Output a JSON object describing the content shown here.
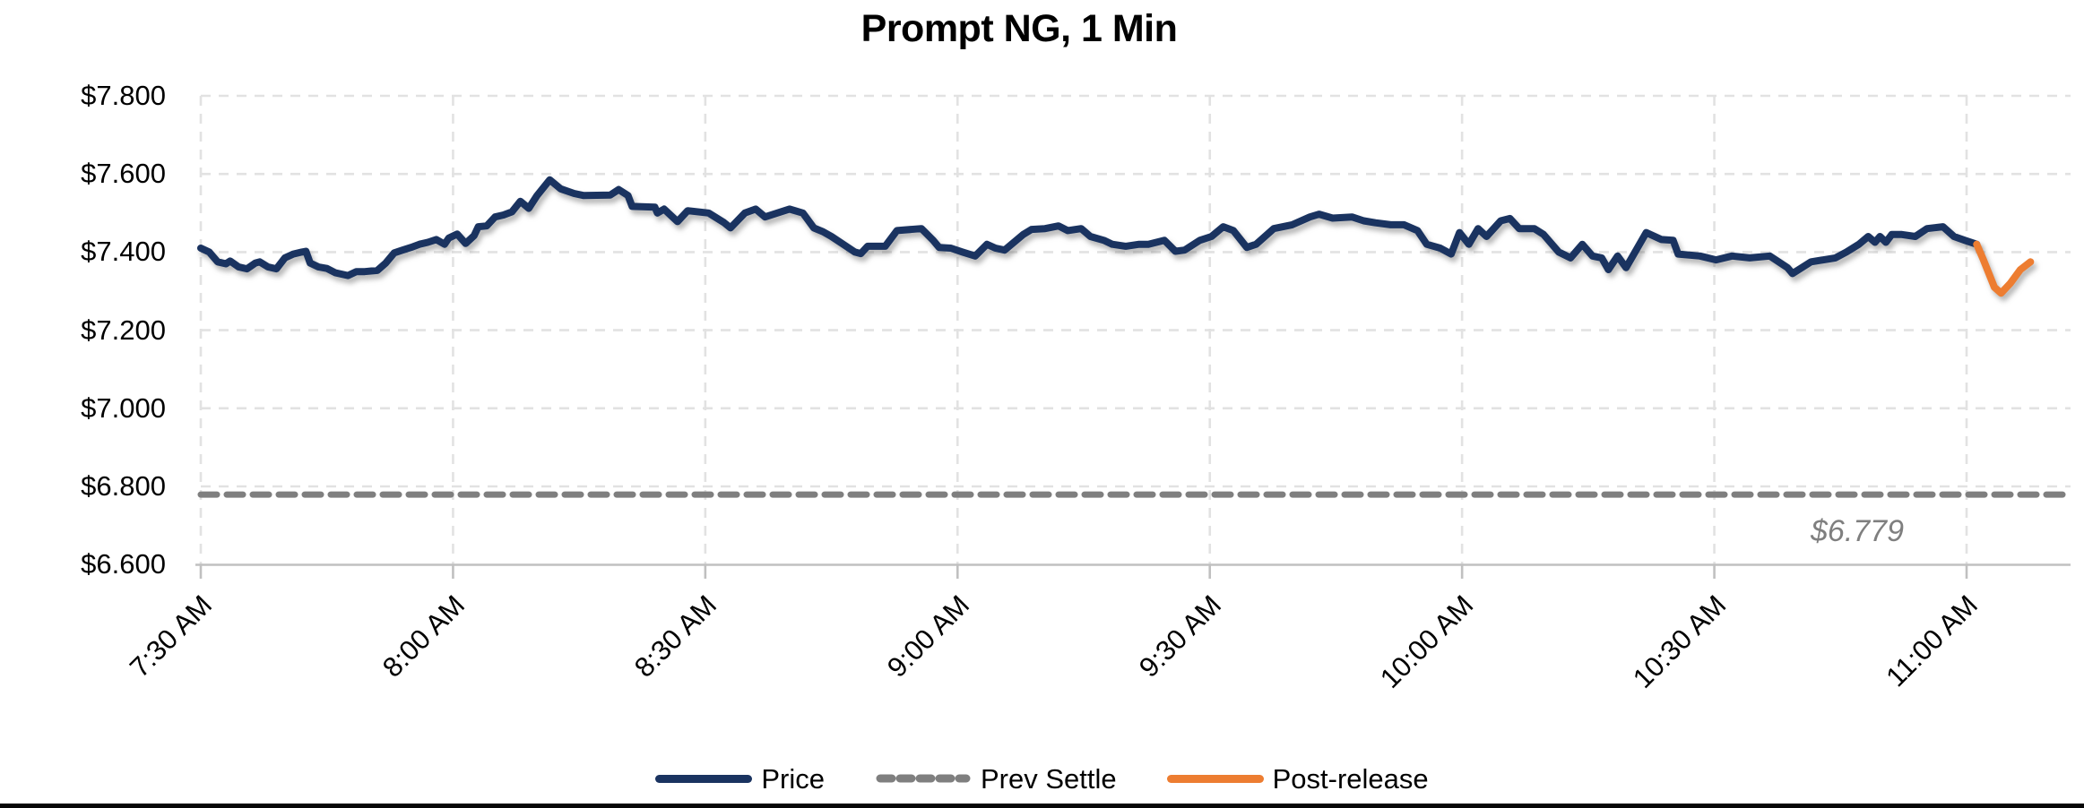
{
  "chart_data": {
    "type": "line",
    "title": "Prompt NG, 1 Min",
    "xlabel": "",
    "ylabel": "",
    "x_unit": "minutes after 7:30 AM",
    "x_tick_labels": [
      "7:30 AM",
      "8:00 AM",
      "8:30 AM",
      "9:00 AM",
      "9:30 AM",
      "10:00 AM",
      "10:30 AM",
      "11:00 AM"
    ],
    "x_tick_minutes": [
      0,
      30,
      60,
      90,
      120,
      150,
      180,
      210
    ],
    "y_tick_labels": [
      "$7.800",
      "$7.600",
      "$7.400",
      "$7.200",
      "$7.000",
      "$6.800",
      "$6.600"
    ],
    "y_tick_values": [
      7.8,
      7.6,
      7.4,
      7.2,
      7.0,
      6.8,
      6.6
    ],
    "ylim": [
      6.6,
      7.8
    ],
    "grid": "dashed",
    "legend_position": "bottom",
    "prev_settle_value": 6.779,
    "prev_settle_label": "$6.779",
    "series": [
      {
        "name": "Price",
        "color": "#1a3360",
        "style": "solid",
        "points": [
          [
            0,
            7.41
          ],
          [
            1,
            7.4
          ],
          [
            2,
            7.375
          ],
          [
            3,
            7.37
          ],
          [
            3.5,
            7.377
          ],
          [
            4.5,
            7.362
          ],
          [
            5.5,
            7.357
          ],
          [
            6.5,
            7.372
          ],
          [
            7,
            7.375
          ],
          [
            8,
            7.362
          ],
          [
            9,
            7.357
          ],
          [
            10,
            7.385
          ],
          [
            11,
            7.395
          ],
          [
            12,
            7.4
          ],
          [
            12.5,
            7.402
          ],
          [
            13,
            7.372
          ],
          [
            14,
            7.362
          ],
          [
            15,
            7.358
          ],
          [
            16,
            7.347
          ],
          [
            17.5,
            7.34
          ],
          [
            18.5,
            7.35
          ],
          [
            19.5,
            7.35
          ],
          [
            21,
            7.353
          ],
          [
            22,
            7.372
          ],
          [
            23,
            7.398
          ],
          [
            24,
            7.405
          ],
          [
            25,
            7.412
          ],
          [
            26,
            7.42
          ],
          [
            27,
            7.425
          ],
          [
            28,
            7.432
          ],
          [
            29,
            7.42
          ],
          [
            29.5,
            7.436
          ],
          [
            30.5,
            7.446
          ],
          [
            31.5,
            7.422
          ],
          [
            32.5,
            7.442
          ],
          [
            33,
            7.465
          ],
          [
            34,
            7.467
          ],
          [
            35,
            7.49
          ],
          [
            36,
            7.495
          ],
          [
            37,
            7.503
          ],
          [
            38,
            7.53
          ],
          [
            39,
            7.512
          ],
          [
            40,
            7.545
          ],
          [
            41.5,
            7.585
          ],
          [
            42.8,
            7.562
          ],
          [
            44.4,
            7.55
          ],
          [
            45.5,
            7.545
          ],
          [
            48.7,
            7.546
          ],
          [
            49.7,
            7.56
          ],
          [
            50.8,
            7.545
          ],
          [
            51.3,
            7.517
          ],
          [
            54,
            7.515
          ],
          [
            54.3,
            7.5
          ],
          [
            55.1,
            7.51
          ],
          [
            56.7,
            7.478
          ],
          [
            57.9,
            7.506
          ],
          [
            60.4,
            7.5
          ],
          [
            62.2,
            7.476
          ],
          [
            63,
            7.462
          ],
          [
            64.7,
            7.5
          ],
          [
            66,
            7.51
          ],
          [
            67.1,
            7.49
          ],
          [
            70,
            7.51
          ],
          [
            71.6,
            7.5
          ],
          [
            72.9,
            7.462
          ],
          [
            74,
            7.452
          ],
          [
            75,
            7.44
          ],
          [
            76.4,
            7.42
          ],
          [
            77.8,
            7.4
          ],
          [
            78.5,
            7.396
          ],
          [
            79.3,
            7.415
          ],
          [
            81.4,
            7.415
          ],
          [
            82.8,
            7.455
          ],
          [
            85.7,
            7.46
          ],
          [
            87.1,
            7.43
          ],
          [
            87.8,
            7.412
          ],
          [
            89.2,
            7.41
          ],
          [
            90.6,
            7.4
          ],
          [
            92.1,
            7.39
          ],
          [
            93.5,
            7.42
          ],
          [
            94.5,
            7.41
          ],
          [
            95.6,
            7.405
          ],
          [
            97.8,
            7.445
          ],
          [
            98.8,
            7.458
          ],
          [
            100.4,
            7.46
          ],
          [
            102,
            7.467
          ],
          [
            103.1,
            7.455
          ],
          [
            104.7,
            7.46
          ],
          [
            105.8,
            7.44
          ],
          [
            107.4,
            7.43
          ],
          [
            108.4,
            7.42
          ],
          [
            110,
            7.415
          ],
          [
            111.6,
            7.42
          ],
          [
            112.7,
            7.42
          ],
          [
            114.6,
            7.43
          ],
          [
            115.9,
            7.402
          ],
          [
            117,
            7.405
          ],
          [
            118.8,
            7.43
          ],
          [
            120.2,
            7.44
          ],
          [
            121.6,
            7.465
          ],
          [
            122.8,
            7.455
          ],
          [
            124.4,
            7.412
          ],
          [
            125.5,
            7.42
          ],
          [
            127.6,
            7.46
          ],
          [
            129.8,
            7.47
          ],
          [
            131.9,
            7.49
          ],
          [
            133,
            7.497
          ],
          [
            134.6,
            7.487
          ],
          [
            136.9,
            7.49
          ],
          [
            138.3,
            7.48
          ],
          [
            139.7,
            7.475
          ],
          [
            141.5,
            7.47
          ],
          [
            143.1,
            7.47
          ],
          [
            144.7,
            7.455
          ],
          [
            145.8,
            7.42
          ],
          [
            147.4,
            7.41
          ],
          [
            148.7,
            7.395
          ],
          [
            149.7,
            7.45
          ],
          [
            150.8,
            7.42
          ],
          [
            151.9,
            7.46
          ],
          [
            152.9,
            7.44
          ],
          [
            154.6,
            7.48
          ],
          [
            155.7,
            7.486
          ],
          [
            156.8,
            7.46
          ],
          [
            158.6,
            7.46
          ],
          [
            159.7,
            7.445
          ],
          [
            161.5,
            7.4
          ],
          [
            162.9,
            7.385
          ],
          [
            164.3,
            7.42
          ],
          [
            165.5,
            7.39
          ],
          [
            166.6,
            7.385
          ],
          [
            167.4,
            7.355
          ],
          [
            168.5,
            7.39
          ],
          [
            169.5,
            7.36
          ],
          [
            170.3,
            7.39
          ],
          [
            171.9,
            7.45
          ],
          [
            173.7,
            7.432
          ],
          [
            175.1,
            7.43
          ],
          [
            175.7,
            7.395
          ],
          [
            178.3,
            7.39
          ],
          [
            180.2,
            7.38
          ],
          [
            182.1,
            7.39
          ],
          [
            184.2,
            7.385
          ],
          [
            186.6,
            7.39
          ],
          [
            188.7,
            7.36
          ],
          [
            189.3,
            7.345
          ],
          [
            191.5,
            7.375
          ],
          [
            194.4,
            7.385
          ],
          [
            195.7,
            7.4
          ],
          [
            197.2,
            7.42
          ],
          [
            198.3,
            7.44
          ],
          [
            199.1,
            7.425
          ],
          [
            199.7,
            7.44
          ],
          [
            200.4,
            7.425
          ],
          [
            201.1,
            7.445
          ],
          [
            202.3,
            7.445
          ],
          [
            203.9,
            7.44
          ],
          [
            205.3,
            7.46
          ],
          [
            207.2,
            7.465
          ],
          [
            208.5,
            7.44
          ],
          [
            209.8,
            7.43
          ],
          [
            211.2,
            7.42
          ]
        ]
      },
      {
        "name": "Prev Settle",
        "color": "#7f7f7f",
        "style": "dashed",
        "points": [
          [
            0,
            6.779
          ],
          [
            222,
            6.779
          ]
        ]
      },
      {
        "name": "Post-release",
        "color": "#ed7d31",
        "style": "solid",
        "points": [
          [
            211.2,
            7.42
          ],
          [
            212,
            7.38
          ],
          [
            213.3,
            7.31
          ],
          [
            214.1,
            7.295
          ],
          [
            215.2,
            7.32
          ],
          [
            216.4,
            7.355
          ],
          [
            217.6,
            7.375
          ]
        ]
      }
    ]
  },
  "colors": {
    "price": "#1a3360",
    "prev_settle": "#7f7f7f",
    "post_release": "#ed7d31",
    "gridline": "#e2e2e2",
    "axis": "#c0c0c0",
    "annotation_text": "#7f7f7f",
    "background": "#ffffff",
    "bottom_border": "#060606"
  }
}
